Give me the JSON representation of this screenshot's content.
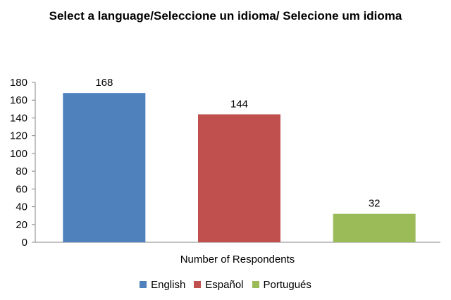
{
  "chart_data": {
    "type": "bar",
    "title": "Select a language/Seleccione  un idioma/  Selecione um idioma",
    "xlabel": "Number of Respondents",
    "ylabel": "",
    "categories": [
      "English",
      "Español",
      "Portugués"
    ],
    "values": [
      168,
      144,
      32
    ],
    "colors": [
      "#4F81BD",
      "#C0504D",
      "#9BBB59"
    ],
    "ylim": [
      0,
      180
    ],
    "yticks": [
      0,
      20,
      40,
      60,
      80,
      100,
      120,
      140,
      160,
      180
    ],
    "grid": false,
    "legend_position": "bottom",
    "data_labels": true
  }
}
